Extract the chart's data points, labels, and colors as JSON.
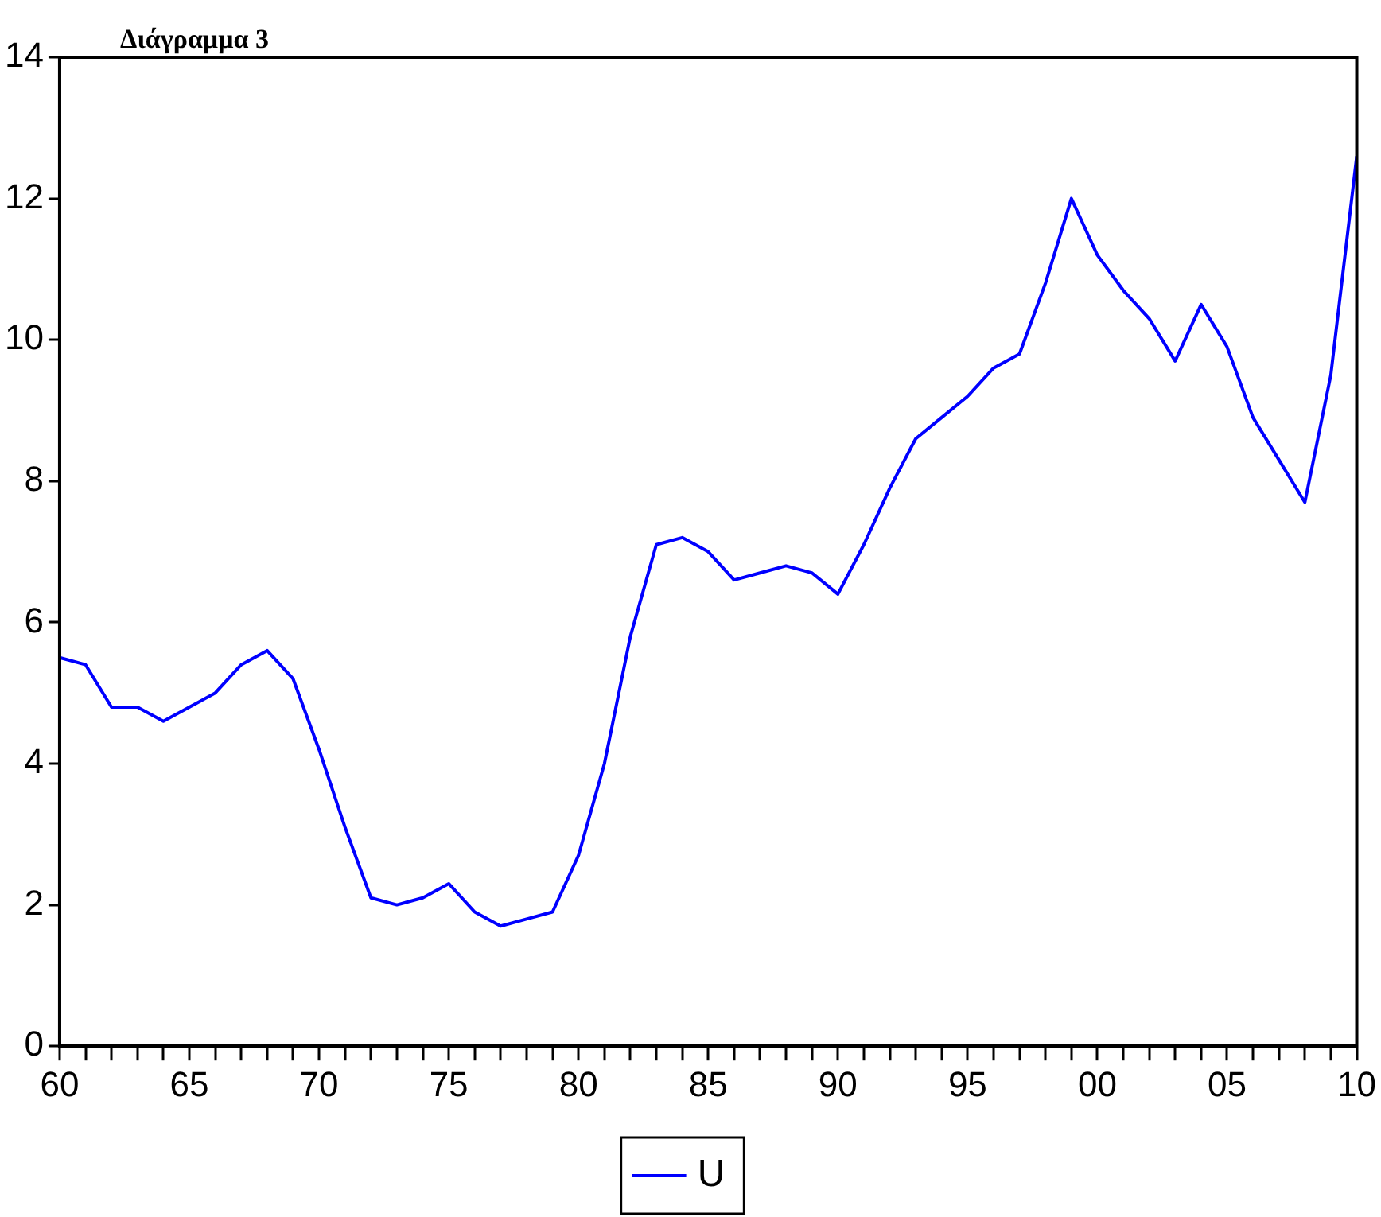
{
  "chart_data": {
    "type": "line",
    "title": "Διάγραμμα 3",
    "x": [
      1960,
      1961,
      1962,
      1963,
      1964,
      1965,
      1966,
      1967,
      1968,
      1969,
      1970,
      1971,
      1972,
      1973,
      1974,
      1975,
      1976,
      1977,
      1978,
      1979,
      1980,
      1981,
      1982,
      1983,
      1984,
      1985,
      1986,
      1987,
      1988,
      1989,
      1990,
      1991,
      1992,
      1993,
      1994,
      1995,
      1996,
      1997,
      1998,
      1999,
      2000,
      2001,
      2002,
      2003,
      2004,
      2005,
      2006,
      2007,
      2008,
      2009,
      2010
    ],
    "series": [
      {
        "name": "U",
        "color": "#0000ff",
        "values": [
          5.5,
          5.4,
          4.8,
          4.8,
          4.6,
          4.8,
          5.0,
          5.4,
          5.6,
          5.2,
          4.2,
          3.1,
          2.1,
          2.0,
          2.1,
          2.3,
          1.9,
          1.7,
          1.8,
          1.9,
          2.7,
          4.0,
          5.8,
          7.1,
          7.2,
          7.0,
          6.6,
          6.7,
          6.8,
          6.7,
          6.4,
          7.1,
          7.9,
          8.6,
          8.9,
          9.2,
          9.6,
          9.8,
          10.8,
          12.0,
          11.2,
          10.7,
          10.3,
          9.7,
          10.5,
          9.9,
          8.9,
          8.3,
          7.7,
          9.5,
          12.6
        ]
      }
    ],
    "xlim": [
      1960,
      2010
    ],
    "xticks": [
      {
        "value": 1960,
        "label": "60"
      },
      {
        "value": 1961,
        "label": null
      },
      {
        "value": 1962,
        "label": null
      },
      {
        "value": 1963,
        "label": null
      },
      {
        "value": 1964,
        "label": null
      },
      {
        "value": 1965,
        "label": "65"
      },
      {
        "value": 1966,
        "label": null
      },
      {
        "value": 1967,
        "label": null
      },
      {
        "value": 1968,
        "label": null
      },
      {
        "value": 1969,
        "label": null
      },
      {
        "value": 1970,
        "label": "70"
      },
      {
        "value": 1971,
        "label": null
      },
      {
        "value": 1972,
        "label": null
      },
      {
        "value": 1973,
        "label": null
      },
      {
        "value": 1974,
        "label": null
      },
      {
        "value": 1975,
        "label": "75"
      },
      {
        "value": 1976,
        "label": null
      },
      {
        "value": 1977,
        "label": null
      },
      {
        "value": 1978,
        "label": null
      },
      {
        "value": 1979,
        "label": null
      },
      {
        "value": 1980,
        "label": "80"
      },
      {
        "value": 1981,
        "label": null
      },
      {
        "value": 1982,
        "label": null
      },
      {
        "value": 1983,
        "label": null
      },
      {
        "value": 1984,
        "label": null
      },
      {
        "value": 1985,
        "label": "85"
      },
      {
        "value": 1986,
        "label": null
      },
      {
        "value": 1987,
        "label": null
      },
      {
        "value": 1988,
        "label": null
      },
      {
        "value": 1989,
        "label": null
      },
      {
        "value": 1990,
        "label": "90"
      },
      {
        "value": 1991,
        "label": null
      },
      {
        "value": 1992,
        "label": null
      },
      {
        "value": 1993,
        "label": null
      },
      {
        "value": 1994,
        "label": null
      },
      {
        "value": 1995,
        "label": "95"
      },
      {
        "value": 1996,
        "label": null
      },
      {
        "value": 1997,
        "label": null
      },
      {
        "value": 1998,
        "label": null
      },
      {
        "value": 1999,
        "label": null
      },
      {
        "value": 2000,
        "label": "00"
      },
      {
        "value": 2001,
        "label": null
      },
      {
        "value": 2002,
        "label": null
      },
      {
        "value": 2003,
        "label": null
      },
      {
        "value": 2004,
        "label": null
      },
      {
        "value": 2005,
        "label": "05"
      },
      {
        "value": 2006,
        "label": null
      },
      {
        "value": 2007,
        "label": null
      },
      {
        "value": 2008,
        "label": null
      },
      {
        "value": 2009,
        "label": null
      },
      {
        "value": 2010,
        "label": "10"
      }
    ],
    "ylim": [
      0,
      14
    ],
    "yticks": [
      0,
      2,
      4,
      6,
      8,
      10,
      12,
      14
    ],
    "grid": false,
    "legend": "bottom",
    "marker": "none",
    "line_style": "solid"
  }
}
